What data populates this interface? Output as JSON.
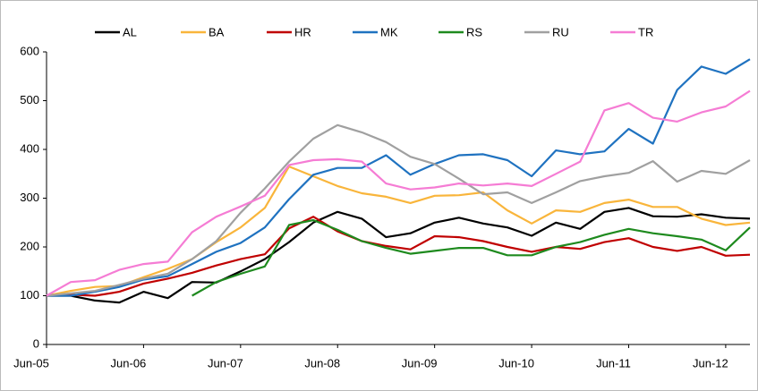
{
  "chart_data": {
    "type": "line",
    "categories": [
      "Jun-05",
      null,
      null,
      null,
      "Jun-06",
      null,
      null,
      null,
      "Jun-07",
      null,
      null,
      null,
      "Jun-08",
      null,
      null,
      null,
      "Jun-09",
      null,
      null,
      null,
      "Jun-10",
      null,
      null,
      null,
      "Jun-11",
      null,
      null,
      null,
      "Jun-12",
      null
    ],
    "ylim": [
      0,
      600
    ],
    "yticks": [
      0,
      100,
      200,
      300,
      400,
      500,
      600
    ],
    "legend": "top",
    "series": [
      {
        "name": "AL",
        "color": "#000000",
        "values": [
          100,
          100,
          90,
          86,
          108,
          95,
          128,
          127,
          150,
          175,
          210,
          250,
          272,
          258,
          220,
          228,
          250,
          260,
          248,
          240,
          223,
          250,
          237,
          272,
          280,
          263,
          262,
          267,
          260,
          258
        ]
      },
      {
        "name": "BA",
        "color": "#f9b53b",
        "values": [
          100,
          110,
          118,
          120,
          138,
          155,
          175,
          210,
          240,
          280,
          365,
          345,
          325,
          310,
          303,
          290,
          305,
          306,
          312,
          275,
          248,
          275,
          272,
          290,
          297,
          282,
          282,
          258,
          245,
          250
        ]
      },
      {
        "name": "HR",
        "color": "#c00000",
        "values": [
          100,
          102,
          100,
          108,
          125,
          135,
          147,
          162,
          175,
          185,
          238,
          262,
          232,
          212,
          202,
          195,
          222,
          220,
          212,
          200,
          190,
          200,
          196,
          210,
          218,
          200,
          192,
          200,
          182,
          184
        ]
      },
      {
        "name": "MK",
        "color": "#1f72c0",
        "values": [
          100,
          100,
          108,
          118,
          133,
          140,
          165,
          190,
          208,
          240,
          298,
          348,
          362,
          362,
          388,
          348,
          370,
          388,
          390,
          378,
          345,
          398,
          390,
          396,
          442,
          412,
          522,
          570,
          555,
          585
        ]
      },
      {
        "name": "RS",
        "color": "#1e8a1e",
        "values": [
          null,
          null,
          null,
          null,
          null,
          null,
          100,
          128,
          145,
          160,
          245,
          255,
          235,
          212,
          198,
          186,
          192,
          198,
          198,
          183,
          183,
          200,
          210,
          225,
          237,
          228,
          222,
          215,
          193,
          240
        ]
      },
      {
        "name": "RU",
        "color": "#a0a0a0",
        "values": [
          100,
          105,
          110,
          122,
          135,
          145,
          175,
          212,
          270,
          320,
          375,
          422,
          450,
          435,
          415,
          385,
          370,
          340,
          308,
          312,
          290,
          312,
          335,
          345,
          352,
          376,
          334,
          356,
          350,
          378
        ]
      },
      {
        "name": "TR",
        "color": "#f57cd4",
        "values": [
          100,
          128,
          132,
          153,
          165,
          170,
          230,
          262,
          283,
          305,
          368,
          378,
          380,
          375,
          330,
          318,
          322,
          330,
          326,
          330,
          325,
          350,
          375,
          480,
          495,
          465,
          457,
          476,
          488,
          520
        ]
      }
    ]
  }
}
